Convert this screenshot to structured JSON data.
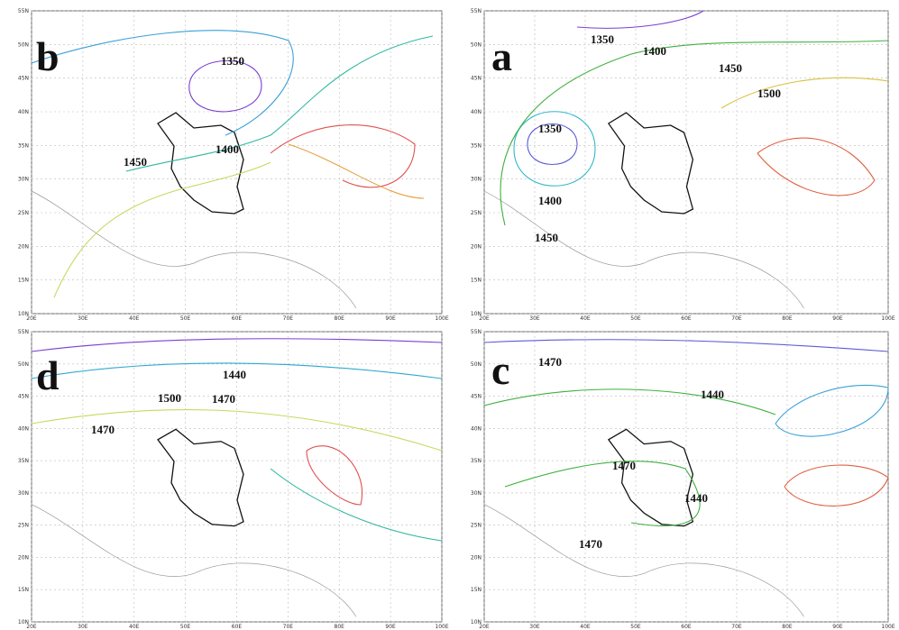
{
  "panels": [
    {
      "letter": "b",
      "labels": [
        "1350",
        "1400",
        "1450"
      ]
    },
    {
      "letter": "a",
      "labels": [
        "1350",
        "1400",
        "1450",
        "1500",
        "1350",
        "1400",
        "1450"
      ]
    },
    {
      "letter": "d",
      "labels": [
        "1440",
        "1500",
        "1470",
        "1470"
      ]
    },
    {
      "letter": "c",
      "labels": [
        "1470",
        "1440",
        "1470",
        "1440",
        "1470"
      ]
    }
  ],
  "lat_labels": [
    "55N",
    "50N",
    "45N",
    "40N",
    "35N",
    "30N",
    "25N",
    "20N",
    "15N",
    "10N"
  ],
  "lon_labels": [
    "20E",
    "30E",
    "40E",
    "50E",
    "60E",
    "70E",
    "80E",
    "90E",
    "100E"
  ]
}
